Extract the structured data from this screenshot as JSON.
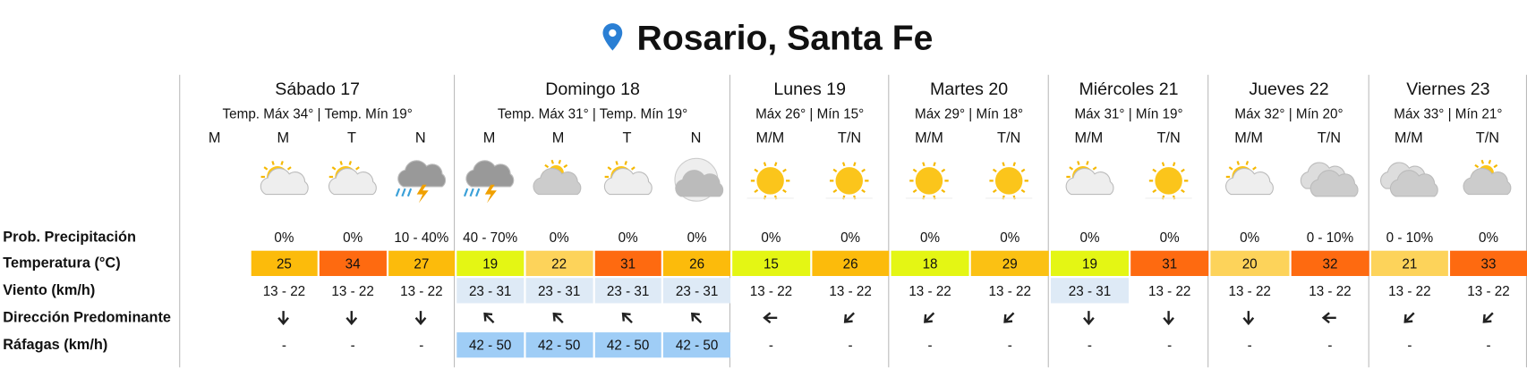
{
  "title": "Rosario, Santa Fe",
  "row_labels": [
    "Prob. Precipitación",
    "Temperatura (°C)",
    "Viento (km/h)",
    "Dirección Predominante",
    "Ráfagas (km/h)"
  ],
  "days": [
    {
      "name": "Sábado 17",
      "temps": "Temp. Máx 34° | Temp. Mín 19°",
      "periods": [
        {
          "label": "M"
        },
        {
          "label": "M",
          "precip": "0%",
          "temp": 25,
          "temp_color": "#fcbb0b",
          "wind": "13 - 22",
          "gusts": "-"
        },
        {
          "label": "T",
          "precip": "0%",
          "temp": 34,
          "temp_color": "#fe6a10",
          "wind": "13 - 22",
          "gusts": "-"
        },
        {
          "label": "N",
          "precip": "10 - 40%",
          "temp": 27,
          "temp_color": "#fcbb0b",
          "wind": "13 - 22",
          "gusts": "-"
        }
      ]
    },
    {
      "name": "Domingo 18",
      "temps": "Temp. Máx 31° | Temp. Mín 19°",
      "periods": [
        {
          "label": "M",
          "precip": "40 - 70%",
          "temp": 19,
          "temp_color": "#e4f614",
          "wind": "23 - 31",
          "wind_color": "#deeaf6",
          "gusts": "42 - 50",
          "gusts_color": "#9fcdf6"
        },
        {
          "label": "M",
          "precip": "0%",
          "temp": 22,
          "temp_color": "#fdd35a",
          "wind": "23 - 31",
          "wind_color": "#deeaf6",
          "gusts": "42 - 50",
          "gusts_color": "#9fcdf6"
        },
        {
          "label": "T",
          "precip": "0%",
          "temp": 31,
          "temp_color": "#fe6a10",
          "wind": "23 - 31",
          "wind_color": "#deeaf6",
          "gusts": "42 - 50",
          "gusts_color": "#9fcdf6"
        },
        {
          "label": "N",
          "precip": "0%",
          "temp": 26,
          "temp_color": "#fcbb0b",
          "wind": "23 - 31",
          "wind_color": "#deeaf6",
          "gusts": "42 - 50",
          "gusts_color": "#9fcdf6"
        }
      ]
    },
    {
      "name": "Lunes 19",
      "temps": "Máx 26° | Mín 15°",
      "periods": [
        {
          "label": "M/M",
          "precip": "0%",
          "temp": 15,
          "temp_color": "#e4f614",
          "wind": "13 - 22",
          "gusts": "-"
        },
        {
          "label": "T/N",
          "precip": "0%",
          "temp": 26,
          "temp_color": "#fcbb0b",
          "wind": "13 - 22",
          "gusts": "-"
        }
      ]
    },
    {
      "name": "Martes 20",
      "temps": "Máx 29° | Mín 18°",
      "periods": [
        {
          "label": "M/M",
          "precip": "0%",
          "temp": 18,
          "temp_color": "#e4f614",
          "wind": "13 - 22",
          "gusts": "-"
        },
        {
          "label": "T/N",
          "precip": "0%",
          "temp": 29,
          "temp_color": "#fbc113",
          "wind": "13 - 22",
          "gusts": "-"
        }
      ]
    },
    {
      "name": "Miércoles 21",
      "temps": "Máx 31° | Mín 19°",
      "periods": [
        {
          "label": "M/M",
          "precip": "0%",
          "temp": 19,
          "temp_color": "#e4f614",
          "wind": "23 - 31",
          "wind_color": "#deeaf6",
          "gusts": "-"
        },
        {
          "label": "T/N",
          "precip": "0%",
          "temp": 31,
          "temp_color": "#fe6a10",
          "wind": "13 - 22",
          "gusts": "-"
        }
      ]
    },
    {
      "name": "Jueves 22",
      "temps": "Máx 32° | Mín 20°",
      "periods": [
        {
          "label": "M/M",
          "precip": "0%",
          "temp": 20,
          "temp_color": "#fdd35a",
          "wind": "13 - 22",
          "gusts": "-"
        },
        {
          "label": "T/N",
          "precip": "0 - 10%",
          "temp": 32,
          "temp_color": "#fe6a10",
          "wind": "13 - 22",
          "gusts": "-"
        }
      ]
    },
    {
      "name": "Viernes 23",
      "temps": "Máx 33° | Mín 21°",
      "periods": [
        {
          "label": "M/M",
          "precip": "0 - 10%",
          "temp": 21,
          "temp_color": "#fdd35a",
          "wind": "13 - 22",
          "gusts": "-"
        },
        {
          "label": "T/N",
          "precip": "0%",
          "temp": 33,
          "temp_color": "#fe6a10",
          "wind": "13 - 22",
          "gusts": "-"
        }
      ]
    }
  ]
}
